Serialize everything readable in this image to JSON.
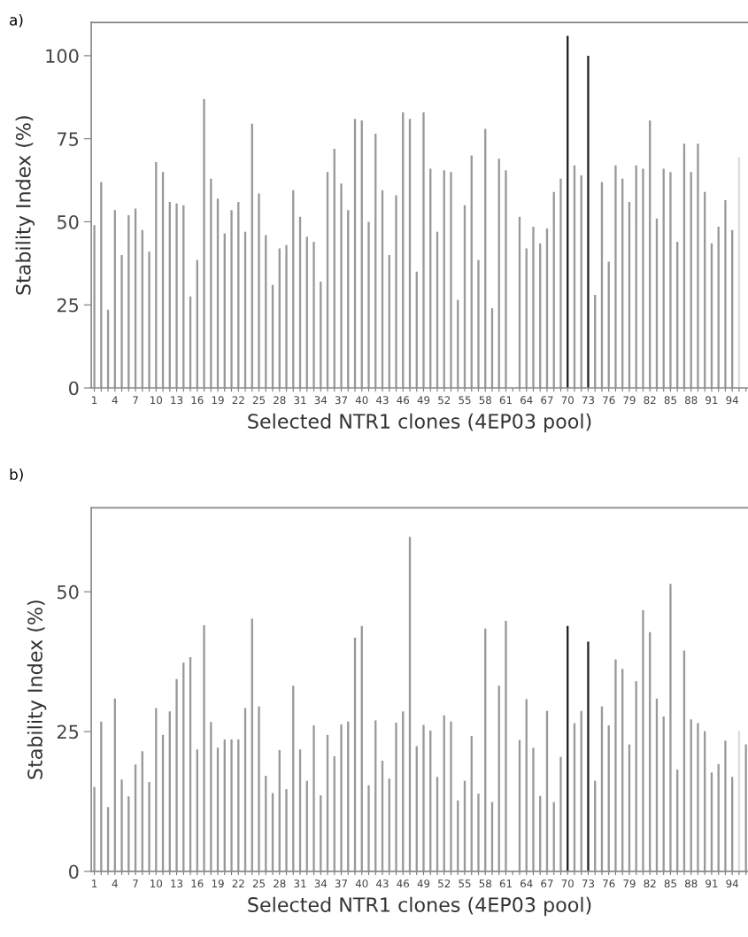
{
  "chart_data": [
    {
      "type": "bar",
      "annotations": [
        "a)"
      ],
      "xlabel": "Selected NTR1 clones (4EP03 pool)",
      "ylabel": "Stability Index (%)",
      "ylim": [
        0,
        110
      ],
      "yticks": [
        0,
        25,
        50,
        75,
        100
      ],
      "grid": false,
      "legend": false,
      "categories": [
        "1",
        null,
        null,
        "4",
        null,
        null,
        "7",
        null,
        null,
        "10",
        null,
        null,
        "13",
        null,
        null,
        "16",
        null,
        null,
        "19",
        null,
        null,
        "22",
        null,
        null,
        "25",
        null,
        null,
        "28",
        null,
        null,
        "31",
        null,
        null,
        "34",
        null,
        null,
        "37",
        null,
        null,
        "40",
        null,
        null,
        "43",
        null,
        null,
        "46",
        null,
        null,
        "49",
        null,
        null,
        "52",
        null,
        null,
        "55",
        null,
        null,
        "58",
        null,
        null,
        "61",
        null,
        null,
        "64",
        null,
        null,
        "67",
        null,
        null,
        "70",
        null,
        null,
        "73",
        null,
        null,
        "76",
        null,
        null,
        "79",
        null,
        null,
        "82",
        null,
        null,
        "85",
        null,
        null,
        "88",
        null,
        null,
        "91",
        null,
        null,
        "94",
        null,
        null
      ],
      "values": [
        49,
        62,
        23.5,
        53.5,
        40,
        52,
        54,
        47.5,
        41,
        68,
        65,
        56,
        55.5,
        55,
        27.5,
        38.5,
        87,
        63,
        57,
        46.5,
        53.5,
        56,
        47,
        79.5,
        58.5,
        46,
        31,
        42,
        43,
        59.5,
        51.5,
        45.5,
        44,
        32,
        65,
        72,
        61.5,
        53.5,
        81,
        80.5,
        50,
        76.5,
        59.5,
        40,
        58,
        83,
        81,
        35,
        83,
        66,
        47,
        65.5,
        65,
        26.5,
        55,
        70,
        38.5,
        78,
        24,
        69,
        65.5,
        null,
        51.5,
        42,
        48.5,
        43.5,
        48,
        59,
        63,
        106,
        67,
        64,
        100,
        28,
        62,
        38,
        67,
        63,
        56,
        67,
        66,
        80.5,
        51,
        66,
        65,
        44,
        73.5,
        65,
        73.5,
        59,
        43.5,
        48.5,
        56.5,
        47.5,
        69.5,
        null
      ],
      "colors": [
        "#999999",
        "#999999",
        "#999999",
        "#999999",
        "#999999",
        "#999999",
        "#999999",
        "#999999",
        "#999999",
        "#999999",
        "#999999",
        "#999999",
        "#999999",
        "#999999",
        "#999999",
        "#999999",
        "#999999",
        "#999999",
        "#999999",
        "#999999",
        "#999999",
        "#999999",
        "#999999",
        "#999999",
        "#999999",
        "#999999",
        "#999999",
        "#999999",
        "#999999",
        "#999999",
        "#999999",
        "#999999",
        "#999999",
        "#999999",
        "#999999",
        "#999999",
        "#999999",
        "#999999",
        "#999999",
        "#999999",
        "#999999",
        "#999999",
        "#999999",
        "#999999",
        "#999999",
        "#999999",
        "#999999",
        "#999999",
        "#999999",
        "#999999",
        "#999999",
        "#999999",
        "#999999",
        "#999999",
        "#999999",
        "#999999",
        "#999999",
        "#999999",
        "#999999",
        "#999999",
        "#999999",
        "#999999",
        "#999999",
        "#999999",
        "#999999",
        "#999999",
        "#999999",
        "#999999",
        "#999999",
        "#222222",
        "#999999",
        "#999999",
        "#222222",
        "#999999",
        "#999999",
        "#999999",
        "#999999",
        "#999999",
        "#999999",
        "#999999",
        "#999999",
        "#999999",
        "#999999",
        "#999999",
        "#999999",
        "#999999",
        "#999999",
        "#999999",
        "#999999",
        "#999999",
        "#999999",
        "#999999",
        "#999999",
        "#999999",
        "#dddddd",
        "#999999"
      ]
    },
    {
      "type": "bar",
      "annotations": [
        "b)"
      ],
      "xlabel": "Selected NTR1 clones (4EP03 pool)",
      "ylabel": "Stability Index (%)",
      "ylim": [
        0,
        65
      ],
      "yticks": [
        0,
        25,
        50
      ],
      "grid": false,
      "legend": false,
      "categories": [
        "1",
        null,
        null,
        "4",
        null,
        null,
        "7",
        null,
        null,
        "10",
        null,
        null,
        "13",
        null,
        null,
        "16",
        null,
        null,
        "19",
        null,
        null,
        "22",
        null,
        null,
        "25",
        null,
        null,
        "28",
        null,
        null,
        "31",
        null,
        null,
        "34",
        null,
        null,
        "37",
        null,
        null,
        "40",
        null,
        null,
        "43",
        null,
        null,
        "46",
        null,
        null,
        "49",
        null,
        null,
        "52",
        null,
        null,
        "55",
        null,
        null,
        "58",
        null,
        null,
        "61",
        null,
        null,
        "64",
        null,
        null,
        "67",
        null,
        null,
        "70",
        null,
        null,
        "73",
        null,
        null,
        "76",
        null,
        null,
        "79",
        null,
        null,
        "82",
        null,
        null,
        "85",
        null,
        null,
        "88",
        null,
        null,
        "91",
        null,
        null,
        "94",
        null,
        null
      ],
      "values": [
        15.1,
        26.8,
        11.5,
        30.9,
        16.4,
        13.4,
        19.1,
        21.5,
        16,
        29.2,
        24.4,
        28.6,
        34.4,
        37.3,
        38.3,
        21.8,
        44,
        26.7,
        22.1,
        23.6,
        23.6,
        23.6,
        29.2,
        45.2,
        29.5,
        17.1,
        14,
        21.7,
        14.7,
        33.2,
        21.8,
        16.2,
        26.1,
        13.6,
        24.4,
        20.6,
        26.3,
        26.8,
        41.8,
        43.9,
        15.4,
        27,
        19.8,
        16.6,
        26.6,
        28.6,
        59.8,
        22.4,
        26.2,
        25.2,
        16.9,
        27.9,
        26.8,
        12.7,
        16.2,
        24.2,
        13.9,
        43.4,
        12.4,
        33.2,
        44.8,
        null,
        23.5,
        30.8,
        22.1,
        13.5,
        28.7,
        12.4,
        20.5,
        43.9,
        26.5,
        28.7,
        41.1,
        16.2,
        29.5,
        26.1,
        37.9,
        36.2,
        22.7,
        34,
        46.7,
        42.8,
        30.9,
        27.7,
        51.4,
        18.2,
        39.5,
        27.2,
        26.5,
        25.1,
        17.7,
        19.2,
        23.4,
        16.9,
        25.1,
        22.7
      ],
      "colors": [
        "#999999",
        "#999999",
        "#999999",
        "#999999",
        "#999999",
        "#999999",
        "#999999",
        "#999999",
        "#999999",
        "#999999",
        "#999999",
        "#999999",
        "#999999",
        "#999999",
        "#999999",
        "#999999",
        "#999999",
        "#999999",
        "#999999",
        "#999999",
        "#999999",
        "#999999",
        "#999999",
        "#999999",
        "#999999",
        "#999999",
        "#999999",
        "#999999",
        "#999999",
        "#999999",
        "#999999",
        "#999999",
        "#999999",
        "#999999",
        "#999999",
        "#999999",
        "#999999",
        "#999999",
        "#999999",
        "#999999",
        "#999999",
        "#999999",
        "#999999",
        "#999999",
        "#999999",
        "#999999",
        "#999999",
        "#999999",
        "#999999",
        "#999999",
        "#999999",
        "#999999",
        "#999999",
        "#999999",
        "#999999",
        "#999999",
        "#999999",
        "#999999",
        "#999999",
        "#999999",
        "#999999",
        "#999999",
        "#999999",
        "#999999",
        "#999999",
        "#999999",
        "#999999",
        "#999999",
        "#999999",
        "#222222",
        "#999999",
        "#999999",
        "#222222",
        "#999999",
        "#999999",
        "#999999",
        "#999999",
        "#999999",
        "#999999",
        "#999999",
        "#999999",
        "#999999",
        "#999999",
        "#999999",
        "#999999",
        "#999999",
        "#999999",
        "#999999",
        "#999999",
        "#999999",
        "#999999",
        "#999999",
        "#999999",
        "#999999",
        "#dddddd",
        "#999999"
      ]
    }
  ]
}
